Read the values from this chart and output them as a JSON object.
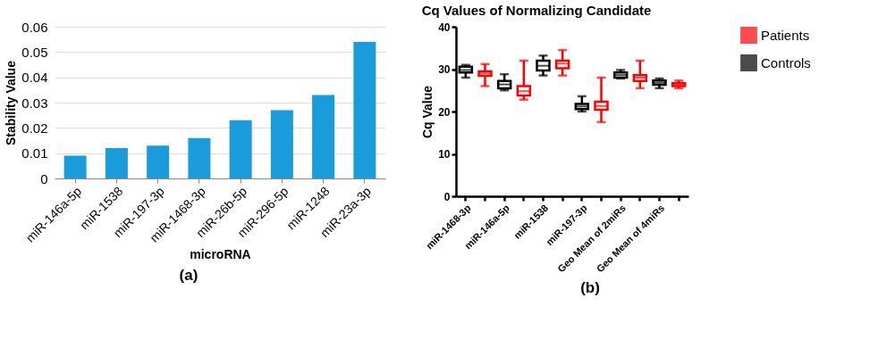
{
  "chart_data": [
    {
      "type": "bar",
      "xlabel": "microRNA",
      "ylabel": "Stability Value",
      "categories": [
        "miR-146a-5p",
        "miR-1538",
        "miR-197-3p",
        "miR-1468-3p",
        "miR-26b-5p",
        "miR-296-5p",
        "miR-1248",
        "miR-23a-3p"
      ],
      "values": [
        0.009,
        0.012,
        0.013,
        0.016,
        0.023,
        0.027,
        0.033,
        0.054
      ],
      "color": "#1a9bdb",
      "ylim": [
        0,
        0.06
      ],
      "yticks": [
        0,
        0.01,
        0.02,
        0.03,
        0.04,
        0.05,
        0.06
      ],
      "grid": "y",
      "annotations": [
        "(a)"
      ]
    },
    {
      "type": "box",
      "title": "Cq Values of Normalizing Candidate",
      "ylabel": "Cq Value",
      "categories": [
        "miR-1468-3p",
        null,
        "miR-146a-5p",
        null,
        "miR-1538",
        null,
        "miR-197-3p",
        null,
        "Geo Mean of 2miRs",
        null,
        "Geo Mean of 4miRs",
        null
      ],
      "ylim": [
        0,
        40
      ],
      "yticks": [
        0,
        10,
        20,
        30,
        40
      ],
      "grid": false,
      "legend": "top right",
      "series": [
        {
          "name": "Patients",
          "color": "#ff0000",
          "boxes": [
            null,
            {
              "low": 26,
              "q1": 28.4,
              "median": 29,
              "q3": 29.5,
              "high": 31.2
            },
            null,
            {
              "low": 22.8,
              "q1": 23.8,
              "median": 24.8,
              "q3": 26,
              "high": 32
            },
            null,
            {
              "low": 28.5,
              "q1": 30.2,
              "median": 31.3,
              "q3": 32,
              "high": 34.5
            },
            null,
            {
              "low": 17.5,
              "q1": 20.4,
              "median": 21.3,
              "q3": 22.3,
              "high": 28
            },
            null,
            {
              "low": 25.5,
              "q1": 27.2,
              "median": 28,
              "q3": 28.6,
              "high": 32
            },
            null,
            {
              "low": 25.5,
              "q1": 26,
              "median": 26.4,
              "q3": 26.7,
              "high": 27.3
            }
          ]
        },
        {
          "name": "Controls",
          "color": "#000000",
          "boxes": [
            {
              "low": 28,
              "q1": 29.2,
              "median": 29.8,
              "q3": 30.6,
              "high": 31
            },
            null,
            {
              "low": 25,
              "q1": 25.5,
              "median": 26.4,
              "q3": 27.2,
              "high": 28.8
            },
            null,
            {
              "low": 28.5,
              "q1": 29.7,
              "median": 30.8,
              "q3": 32,
              "high": 33.2
            },
            null,
            {
              "low": 20,
              "q1": 20.6,
              "median": 21.2,
              "q3": 21.8,
              "high": 23.6
            },
            null,
            {
              "low": 27.8,
              "q1": 28,
              "median": 28.6,
              "q3": 29.2,
              "high": 29.8
            },
            null,
            {
              "low": 25.5,
              "q1": 26.3,
              "median": 26.8,
              "q3": 27.3,
              "high": 27.8
            },
            null
          ]
        }
      ],
      "annotations": [
        "(b)"
      ]
    }
  ]
}
